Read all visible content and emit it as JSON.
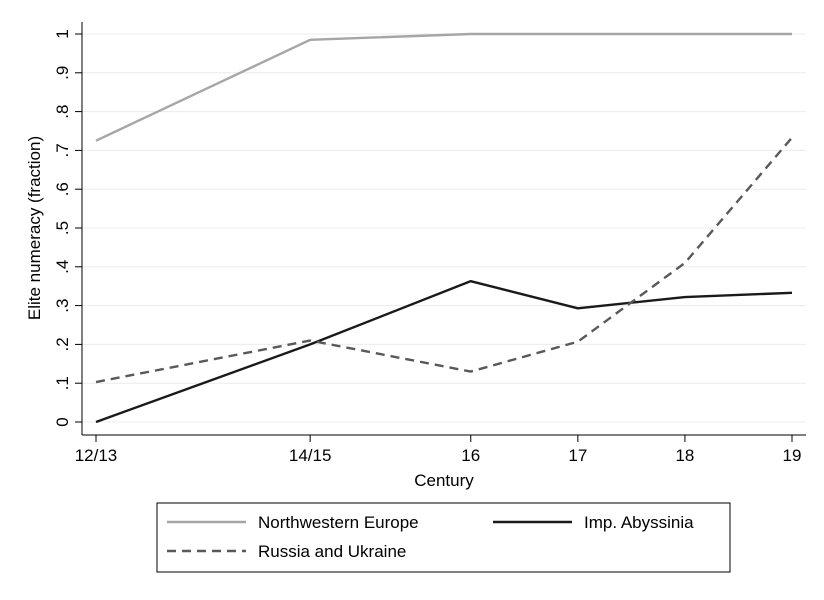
{
  "chart_data": {
    "type": "line",
    "xlabel": "Century",
    "ylabel": "Elite numeracy (fraction)",
    "categories": [
      "12/13",
      "14/15",
      "16",
      "17",
      "18",
      "19"
    ],
    "x_positions": [
      12.5,
      14.5,
      16,
      17,
      18,
      19
    ],
    "xlim": [
      12.5,
      19
    ],
    "ylim": [
      0,
      1
    ],
    "yticks": [
      0,
      0.1,
      0.2,
      0.3,
      0.4,
      0.5,
      0.6,
      0.7,
      0.8,
      0.9,
      1
    ],
    "ytick_labels": [
      "0",
      ".1",
      ".2",
      ".3",
      ".4",
      ".5",
      ".6",
      ".7",
      ".8",
      ".9",
      "1"
    ],
    "grid": true,
    "legend_position": "bottom",
    "series": [
      {
        "name": "Northwestern Europe",
        "values": [
          0.725,
          0.985,
          1.0,
          1.0,
          1.0,
          1.0
        ],
        "color": "#a6a6a6",
        "dash": "solid"
      },
      {
        "name": "Imp. Abyssinia",
        "values": [
          0.0,
          0.2,
          0.363,
          0.293,
          0.322,
          0.333
        ],
        "color": "#1a1a1a",
        "dash": "solid"
      },
      {
        "name": "Russia and Ukraine",
        "values": [
          0.103,
          0.21,
          0.13,
          0.207,
          0.41,
          0.733
        ],
        "color": "#595959",
        "dash": "dashed"
      }
    ]
  }
}
